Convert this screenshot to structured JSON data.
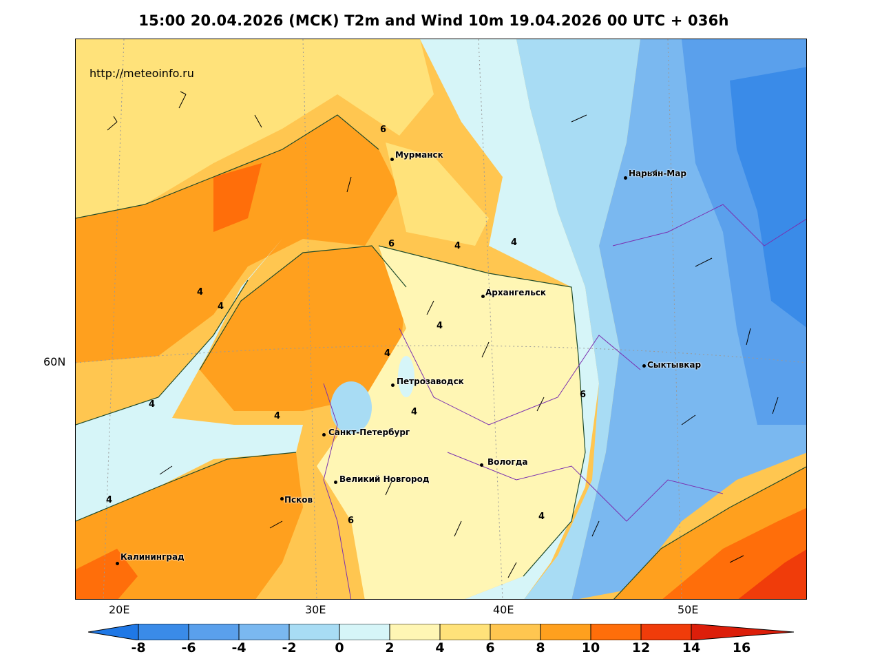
{
  "title": "15:00 20.04.2026 (МСК) T2m and Wind 10m 19.04.2026 00 UTC + 036h",
  "source_url": "http://meteoinfo.ru",
  "axes": {
    "lon_labels": [
      "20E",
      "30E",
      "40E",
      "50E"
    ],
    "lat_labels": [
      "60N"
    ]
  },
  "cities": [
    {
      "name": "Мурманск"
    },
    {
      "name": "Нарьян-Мар"
    },
    {
      "name": "Архангельск"
    },
    {
      "name": "Сыктывкар"
    },
    {
      "name": "Петрозаводск"
    },
    {
      "name": "Санкт-Петербург"
    },
    {
      "name": "Вологда"
    },
    {
      "name": "Великий Новгород"
    },
    {
      "name": "Псков"
    },
    {
      "name": "Калининград"
    }
  ],
  "contour_labels": [
    "6",
    "6",
    "4",
    "4",
    "4",
    "4",
    "4",
    "4",
    "6",
    "4",
    "4",
    "4",
    "4",
    "4",
    "6"
  ],
  "colorbar": {
    "ticks": [
      "-8",
      "-6",
      "-4",
      "-2",
      "0",
      "2",
      "4",
      "6",
      "8",
      "10",
      "12",
      "14",
      "16"
    ],
    "colors": [
      "#1f78e6",
      "#3a8be8",
      "#5aa0ec",
      "#7ab8f0",
      "#a8dcf4",
      "#d6f5f8",
      "#fff6b4",
      "#ffe27a",
      "#ffc650",
      "#ffa01e",
      "#ff6e0a",
      "#f03c0a",
      "#dc1e0a"
    ]
  }
}
